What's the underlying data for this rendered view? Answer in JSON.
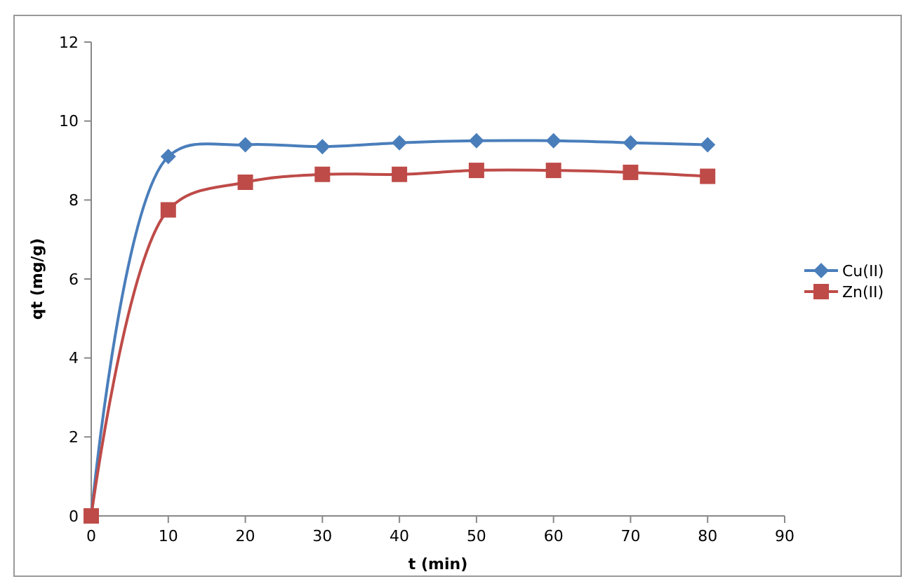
{
  "chart_data": {
    "type": "line",
    "xlabel": "t (min)",
    "ylabel": "qt (mg/g)",
    "x": [
      0,
      10,
      20,
      30,
      40,
      50,
      60,
      70,
      80
    ],
    "series": [
      {
        "name": "Cu(II)",
        "color": "#4a7ebb",
        "marker": "diamond",
        "values": [
          0,
          9.1,
          9.4,
          9.35,
          9.45,
          9.5,
          9.5,
          9.45,
          9.4
        ]
      },
      {
        "name": "Zn(II)",
        "color": "#be4b48",
        "marker": "square",
        "values": [
          0,
          7.75,
          8.45,
          8.65,
          8.65,
          8.75,
          8.75,
          8.7,
          8.6
        ]
      }
    ],
    "xlim": [
      0,
      90
    ],
    "xticks": [
      0,
      10,
      20,
      30,
      40,
      50,
      60,
      70,
      80,
      90
    ],
    "ylim": [
      0,
      12
    ],
    "yticks": [
      0,
      2,
      4,
      6,
      8,
      10,
      12
    ],
    "grid": false,
    "legend": "right",
    "line_style": "solid"
  }
}
